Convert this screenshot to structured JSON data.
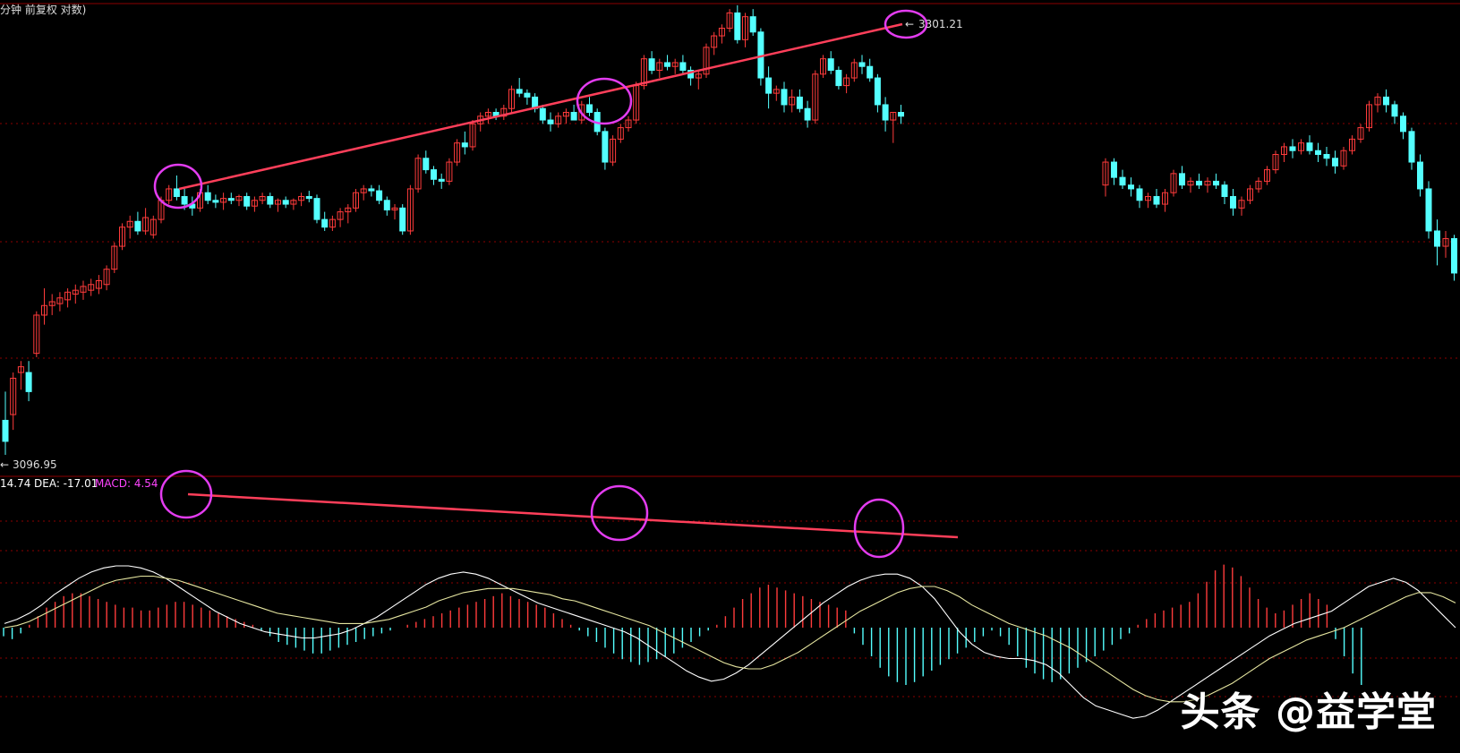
{
  "header": {
    "title": "分钟 前复权 对数)"
  },
  "watermark": "头条 @益学堂",
  "colors": {
    "up": "#ff3b3b",
    "down": "#54ffff",
    "dif": "#ffffff",
    "dea": "#e6e6a0",
    "annotation_line": "#ff3f5a",
    "circle": "#e33cf0",
    "macd_label": "#ff44ff",
    "grid": "#8b0000"
  },
  "chart_data": [
    {
      "type": "candlestick",
      "title": "分钟 前复权 对数)",
      "price_high_label": "3301.21",
      "price_low_label": "3096.95",
      "high_marker": "3301.21",
      "low_marker": "3096.95",
      "ohlc": [
        [
          3115,
          3130,
          3096.95,
          3104
        ],
        [
          3118,
          3140,
          3110,
          3137
        ],
        [
          3140,
          3146,
          3131,
          3143
        ],
        [
          3140,
          3146,
          3125,
          3130
        ],
        [
          3150,
          3172,
          3148,
          3170
        ],
        [
          3170,
          3184,
          3165,
          3175
        ],
        [
          3175,
          3181,
          3170,
          3177
        ],
        [
          3176,
          3182,
          3172,
          3179
        ],
        [
          3178,
          3184,
          3174,
          3182
        ],
        [
          3181,
          3186,
          3176,
          3183
        ],
        [
          3182,
          3188,
          3178,
          3185
        ],
        [
          3183,
          3189,
          3180,
          3186
        ],
        [
          3184,
          3191,
          3181,
          3188
        ],
        [
          3186,
          3196,
          3183,
          3194
        ],
        [
          3194,
          3208,
          3192,
          3206
        ],
        [
          3206,
          3218,
          3204,
          3216
        ],
        [
          3216,
          3222,
          3210,
          3219
        ],
        [
          3219,
          3224,
          3212,
          3214
        ],
        [
          3214,
          3226,
          3212,
          3221
        ],
        [
          3212,
          3222,
          3210,
          3220
        ],
        [
          3220,
          3232,
          3218,
          3230
        ],
        [
          3230,
          3238,
          3228,
          3236
        ],
        [
          3236,
          3243,
          3230,
          3232
        ],
        [
          3232,
          3236,
          3225,
          3228
        ],
        [
          3228,
          3232,
          3222,
          3226
        ],
        [
          3226,
          3236,
          3224,
          3234
        ],
        [
          3234,
          3238,
          3228,
          3230
        ],
        [
          3230,
          3233,
          3226,
          3229
        ],
        [
          3229,
          3234,
          3225,
          3231
        ],
        [
          3231,
          3234,
          3228,
          3230
        ],
        [
          3230,
          3233,
          3227,
          3232
        ],
        [
          3232,
          3234,
          3225,
          3227
        ],
        [
          3227,
          3232,
          3224,
          3230
        ],
        [
          3230,
          3234,
          3228,
          3232
        ],
        [
          3232,
          3234,
          3226,
          3228
        ],
        [
          3228,
          3231,
          3224,
          3230
        ],
        [
          3230,
          3232,
          3226,
          3228
        ],
        [
          3228,
          3231,
          3225,
          3230
        ],
        [
          3230,
          3234,
          3227,
          3232
        ],
        [
          3232,
          3235,
          3229,
          3231
        ],
        [
          3231,
          3233,
          3218,
          3220
        ],
        [
          3220,
          3224,
          3214,
          3216
        ],
        [
          3216,
          3222,
          3214,
          3220
        ],
        [
          3220,
          3226,
          3216,
          3224
        ],
        [
          3224,
          3228,
          3218,
          3226
        ],
        [
          3226,
          3236,
          3224,
          3234
        ],
        [
          3234,
          3238,
          3230,
          3236
        ],
        [
          3236,
          3238,
          3232,
          3235
        ],
        [
          3235,
          3238,
          3228,
          3230
        ],
        [
          3230,
          3232,
          3222,
          3225
        ],
        [
          3225,
          3228,
          3220,
          3226
        ],
        [
          3226,
          3228,
          3212,
          3214
        ],
        [
          3214,
          3238,
          3212,
          3236
        ],
        [
          3236,
          3254,
          3234,
          3252
        ],
        [
          3252,
          3256,
          3244,
          3246
        ],
        [
          3246,
          3248,
          3238,
          3241
        ],
        [
          3241,
          3244,
          3236,
          3240
        ],
        [
          3240,
          3252,
          3238,
          3250
        ],
        [
          3250,
          3262,
          3248,
          3260
        ],
        [
          3260,
          3266,
          3254,
          3258
        ],
        [
          3258,
          3272,
          3256,
          3270
        ],
        [
          3270,
          3276,
          3266,
          3274
        ],
        [
          3274,
          3278,
          3270,
          3276
        ],
        [
          3276,
          3278,
          3272,
          3274
        ],
        [
          3274,
          3280,
          3272,
          3278
        ],
        [
          3278,
          3290,
          3276,
          3288
        ],
        [
          3288,
          3294,
          3284,
          3286
        ],
        [
          3286,
          3288,
          3280,
          3284
        ],
        [
          3284,
          3286,
          3276,
          3278
        ],
        [
          3278,
          3280,
          3270,
          3272
        ],
        [
          3272,
          3276,
          3266,
          3270
        ],
        [
          3270,
          3276,
          3268,
          3274
        ],
        [
          3274,
          3278,
          3270,
          3276
        ],
        [
          3276,
          3280,
          3272,
          3272
        ],
        [
          3272,
          3282,
          3270,
          3280
        ],
        [
          3280,
          3284,
          3274,
          3276
        ],
        [
          3276,
          3278,
          3264,
          3266
        ],
        [
          3266,
          3268,
          3246,
          3250
        ],
        [
          3250,
          3264,
          3248,
          3262
        ],
        [
          3262,
          3270,
          3260,
          3268
        ],
        [
          3268,
          3274,
          3266,
          3272
        ],
        [
          3272,
          3292,
          3270,
          3290
        ],
        [
          3290,
          3306,
          3288,
          3304
        ],
        [
          3304,
          3308,
          3296,
          3298
        ],
        [
          3298,
          3304,
          3294,
          3302
        ],
        [
          3302,
          3306,
          3298,
          3300
        ],
        [
          3300,
          3304,
          3296,
          3302
        ],
        [
          3302,
          3306,
          3296,
          3298
        ],
        [
          3298,
          3300,
          3290,
          3294
        ],
        [
          3294,
          3298,
          3288,
          3296
        ],
        [
          3296,
          3312,
          3294,
          3310
        ],
        [
          3310,
          3318,
          3306,
          3316
        ],
        [
          3316,
          3322,
          3312,
          3320
        ],
        [
          3320,
          3330,
          3318,
          3328
        ],
        [
          3328,
          3332,
          3312,
          3314
        ],
        [
          3314,
          3328,
          3310,
          3326
        ],
        [
          3326,
          3330,
          3316,
          3318
        ],
        [
          3318,
          3320,
          3290,
          3294
        ],
        [
          3294,
          3300,
          3278,
          3286
        ],
        [
          3286,
          3290,
          3282,
          3288
        ],
        [
          3288,
          3292,
          3276,
          3280
        ],
        [
          3280,
          3288,
          3276,
          3284
        ],
        [
          3284,
          3288,
          3276,
          3278
        ],
        [
          3278,
          3282,
          3268,
          3272
        ],
        [
          3272,
          3298,
          3270,
          3296
        ],
        [
          3296,
          3306,
          3294,
          3304
        ],
        [
          3304,
          3308,
          3296,
          3298
        ],
        [
          3298,
          3300,
          3288,
          3290
        ],
        [
          3290,
          3296,
          3286,
          3294
        ],
        [
          3294,
          3304,
          3292,
          3302
        ],
        [
          3302,
          3306,
          3296,
          3300
        ],
        [
          3300,
          3304,
          3292,
          3294
        ],
        [
          3294,
          3296,
          3276,
          3280
        ],
        [
          3280,
          3284,
          3266,
          3272
        ],
        [
          3272,
          3276,
          3260,
          3276
        ],
        [
          3276,
          3280,
          3270,
          3274
        ]
      ],
      "gap_after_index": 121,
      "ohlc_after_gap": [
        [
          3238,
          3252,
          3232,
          3250
        ],
        [
          3250,
          3252,
          3238,
          3242
        ],
        [
          3242,
          3246,
          3236,
          3238
        ],
        [
          3238,
          3242,
          3232,
          3236
        ],
        [
          3236,
          3238,
          3226,
          3230
        ],
        [
          3230,
          3234,
          3226,
          3232
        ],
        [
          3232,
          3236,
          3226,
          3228
        ],
        [
          3228,
          3236,
          3224,
          3234
        ],
        [
          3234,
          3246,
          3232,
          3244
        ],
        [
          3244,
          3248,
          3236,
          3238
        ],
        [
          3238,
          3242,
          3234,
          3240
        ],
        [
          3240,
          3244,
          3236,
          3238
        ],
        [
          3238,
          3242,
          3234,
          3240
        ],
        [
          3240,
          3244,
          3236,
          3238
        ],
        [
          3238,
          3240,
          3228,
          3232
        ],
        [
          3232,
          3236,
          3222,
          3226
        ],
        [
          3226,
          3232,
          3222,
          3230
        ],
        [
          3230,
          3238,
          3228,
          3236
        ],
        [
          3236,
          3242,
          3234,
          3240
        ],
        [
          3240,
          3248,
          3238,
          3246
        ],
        [
          3246,
          3256,
          3244,
          3254
        ],
        [
          3254,
          3260,
          3250,
          3258
        ],
        [
          3258,
          3262,
          3252,
          3256
        ],
        [
          3256,
          3262,
          3254,
          3260
        ],
        [
          3260,
          3264,
          3254,
          3256
        ],
        [
          3256,
          3260,
          3250,
          3254
        ],
        [
          3254,
          3258,
          3248,
          3252
        ],
        [
          3252,
          3256,
          3244,
          3248
        ],
        [
          3248,
          3258,
          3246,
          3256
        ],
        [
          3256,
          3264,
          3254,
          3262
        ],
        [
          3262,
          3270,
          3260,
          3268
        ],
        [
          3268,
          3282,
          3266,
          3280
        ],
        [
          3280,
          3286,
          3276,
          3284
        ],
        [
          3284,
          3288,
          3276,
          3280
        ],
        [
          3280,
          3282,
          3270,
          3274
        ],
        [
          3274,
          3276,
          3262,
          3266
        ],
        [
          3266,
          3268,
          3246,
          3250
        ],
        [
          3250,
          3254,
          3232,
          3236
        ],
        [
          3236,
          3240,
          3210,
          3214
        ],
        [
          3214,
          3220,
          3196,
          3206
        ],
        [
          3206,
          3214,
          3200,
          3210
        ],
        [
          3210,
          3212,
          3188,
          3192
        ]
      ]
    },
    {
      "type": "macd",
      "legend": {
        "dif_label": "14.74",
        "dea_label": "DEA: -17.01",
        "macd_label": "MACD: 4.54"
      },
      "zero_line": 0,
      "hist": [
        -3,
        -4,
        -2,
        1,
        4,
        7,
        9,
        11,
        12,
        12,
        11,
        10,
        9,
        8,
        7,
        7,
        6,
        6,
        7,
        8,
        9,
        9,
        8,
        7,
        6,
        5,
        4,
        3,
        2,
        1,
        -1,
        -3,
        -5,
        -6,
        -7,
        -8,
        -9,
        -9,
        -8,
        -7,
        -6,
        -5,
        -4,
        -3,
        -2,
        -1,
        0,
        1,
        2,
        3,
        4,
        5,
        6,
        7,
        8,
        9,
        10,
        11,
        12,
        11,
        10,
        9,
        8,
        7,
        5,
        3,
        1,
        -1,
        -3,
        -5,
        -7,
        -9,
        -11,
        -12,
        -13,
        -12,
        -11,
        -10,
        -9,
        -7,
        -5,
        -3,
        -1,
        1,
        4,
        7,
        10,
        12,
        14,
        15,
        14,
        13,
        12,
        11,
        10,
        9,
        8,
        7,
        6,
        -2,
        -6,
        -10,
        -14,
        -17,
        -19,
        -20,
        -19,
        -17,
        -15,
        -13,
        -11,
        -9,
        -7,
        -5,
        -3,
        -1,
        -3,
        -6,
        -10,
        -14,
        -16,
        -18,
        -19,
        -18,
        -16,
        -14,
        -12,
        -10,
        -8,
        -6,
        -4,
        -2,
        1,
        3,
        5,
        6,
        7,
        8,
        9,
        12,
        16,
        20,
        22,
        21,
        18,
        14,
        10,
        7,
        5,
        6,
        8,
        10,
        12,
        10,
        8,
        -4,
        -10,
        -16,
        -20
      ],
      "dif": [
        2,
        4,
        7,
        11,
        16,
        20,
        24,
        27,
        29,
        30,
        30,
        29,
        27,
        24,
        20,
        16,
        12,
        8,
        5,
        2,
        0,
        -2,
        -3,
        -4,
        -5,
        -5,
        -4,
        -3,
        -1,
        2,
        5,
        9,
        13,
        17,
        21,
        24,
        26,
        27,
        26,
        24,
        21,
        18,
        15,
        12,
        10,
        8,
        6,
        4,
        2,
        0,
        -2,
        -5,
        -9,
        -13,
        -17,
        -21,
        -24,
        -26,
        -25,
        -22,
        -18,
        -13,
        -8,
        -3,
        2,
        7,
        12,
        16,
        20,
        23,
        25,
        26,
        26,
        24,
        20,
        14,
        6,
        -2,
        -8,
        -12,
        -14,
        -15,
        -15,
        -16,
        -18,
        -22,
        -28,
        -34,
        -38,
        -40,
        -42,
        -44,
        -43,
        -40,
        -36,
        -32,
        -28,
        -24,
        -20,
        -16,
        -12,
        -8,
        -4,
        -1,
        2,
        4,
        6,
        8,
        12,
        16,
        20,
        22,
        24,
        22,
        18,
        12,
        6,
        0
      ],
      "dea": [
        0,
        1,
        3,
        6,
        9,
        12,
        15,
        18,
        21,
        23,
        24,
        25,
        25,
        24,
        23,
        21,
        19,
        17,
        15,
        13,
        11,
        9,
        7,
        6,
        5,
        4,
        3,
        2,
        2,
        2,
        3,
        4,
        6,
        8,
        10,
        13,
        15,
        17,
        18,
        19,
        19,
        19,
        18,
        17,
        16,
        14,
        13,
        11,
        9,
        7,
        5,
        3,
        1,
        -2,
        -5,
        -8,
        -11,
        -14,
        -17,
        -19,
        -20,
        -20,
        -18,
        -15,
        -12,
        -8,
        -4,
        0,
        4,
        8,
        11,
        14,
        17,
        19,
        20,
        20,
        18,
        15,
        11,
        8,
        5,
        2,
        0,
        -2,
        -4,
        -7,
        -10,
        -14,
        -18,
        -22,
        -26,
        -30,
        -33,
        -35,
        -36,
        -36,
        -35,
        -33,
        -30,
        -27,
        -23,
        -19,
        -15,
        -12,
        -9,
        -6,
        -4,
        -2,
        0,
        3,
        6,
        9,
        12,
        15,
        17,
        17,
        15,
        12
      ]
    }
  ]
}
